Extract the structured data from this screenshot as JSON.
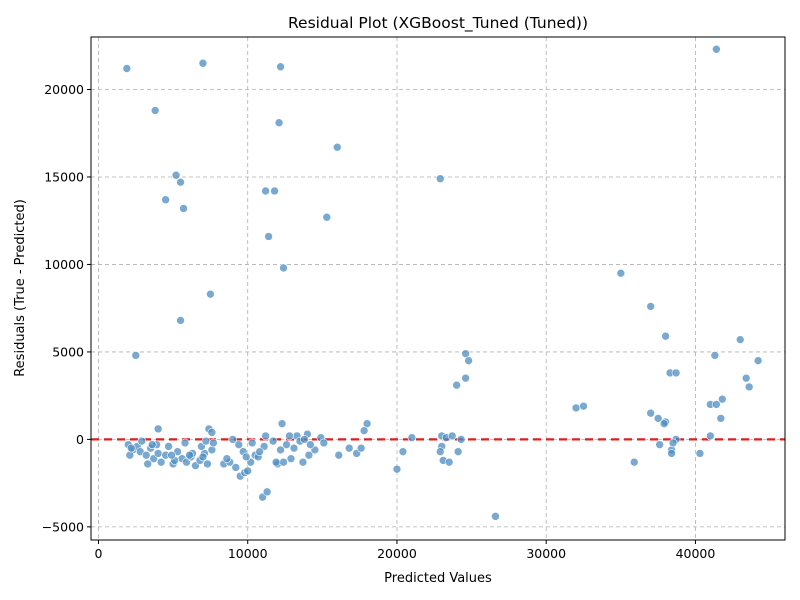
{
  "chart_data": {
    "type": "scatter",
    "title": "Residual Plot (XGBoost_Tuned (Tuned))",
    "xlabel": "Predicted Values",
    "ylabel": "Residuals (True - Predicted)",
    "xlim": [
      -500,
      46000
    ],
    "ylim": [
      -5750,
      23000
    ],
    "xticks": [
      0,
      10000,
      20000,
      30000,
      40000
    ],
    "yticks": [
      -5000,
      0,
      5000,
      10000,
      15000,
      20000
    ],
    "grid": true,
    "reference_line": {
      "y": 0,
      "style": "dashed",
      "color": "#dd1f1f"
    },
    "colors": {
      "point": "#4c8cc0",
      "point_edge": "#ffffff"
    },
    "points": [
      [
        1900,
        21200
      ],
      [
        3800,
        18800
      ],
      [
        7000,
        21500
      ],
      [
        12200,
        21300
      ],
      [
        12100,
        18100
      ],
      [
        41400,
        22300
      ],
      [
        5200,
        15100
      ],
      [
        5500,
        14700
      ],
      [
        4500,
        13700
      ],
      [
        5700,
        13200
      ],
      [
        11200,
        14200
      ],
      [
        11800,
        14200
      ],
      [
        16000,
        16700
      ],
      [
        22900,
        14900
      ],
      [
        15300,
        12700
      ],
      [
        11400,
        11600
      ],
      [
        12400,
        9800
      ],
      [
        7500,
        8300
      ],
      [
        5500,
        6800
      ],
      [
        2500,
        4800
      ],
      [
        35000,
        9500
      ],
      [
        37000,
        7600
      ],
      [
        38000,
        5900
      ],
      [
        43000,
        5700
      ],
      [
        41300,
        4800
      ],
      [
        44200,
        4500
      ],
      [
        38300,
        3800
      ],
      [
        38700,
        3800
      ],
      [
        43400,
        3500
      ],
      [
        43600,
        3000
      ],
      [
        24600,
        4900
      ],
      [
        24800,
        4500
      ],
      [
        24600,
        3500
      ],
      [
        24000,
        3100
      ],
      [
        32000,
        1800
      ],
      [
        32500,
        1900
      ],
      [
        41800,
        2300
      ],
      [
        41000,
        2000
      ],
      [
        41400,
        2000
      ],
      [
        37000,
        1500
      ],
      [
        37500,
        1200
      ],
      [
        38000,
        1000
      ],
      [
        37900,
        900
      ],
      [
        41700,
        1200
      ],
      [
        12300,
        900
      ],
      [
        18000,
        900
      ],
      [
        17800,
        500
      ],
      [
        4000,
        600
      ],
      [
        7400,
        600
      ],
      [
        7600,
        400
      ],
      [
        11200,
        200
      ],
      [
        13300,
        200
      ],
      [
        14900,
        100
      ],
      [
        21000,
        100
      ],
      [
        23000,
        200
      ],
      [
        23300,
        100
      ],
      [
        23700,
        200
      ],
      [
        24300,
        0
      ],
      [
        38700,
        0
      ],
      [
        41000,
        200
      ],
      [
        2000,
        -300
      ],
      [
        2300,
        -600
      ],
      [
        2600,
        -400
      ],
      [
        2800,
        -700
      ],
      [
        3200,
        -900
      ],
      [
        3500,
        -500
      ],
      [
        3700,
        -1100
      ],
      [
        4000,
        -800
      ],
      [
        4200,
        -1300
      ],
      [
        4500,
        -900
      ],
      [
        5000,
        -1400
      ],
      [
        5300,
        -700
      ],
      [
        5600,
        -1100
      ],
      [
        5900,
        -1300
      ],
      [
        6200,
        -1000
      ],
      [
        6500,
        -1500
      ],
      [
        6800,
        -1200
      ],
      [
        7100,
        -800
      ],
      [
        7300,
        -1400
      ],
      [
        7600,
        -600
      ],
      [
        8400,
        -1400
      ],
      [
        8800,
        -1300
      ],
      [
        9200,
        -1600
      ],
      [
        9500,
        -2100
      ],
      [
        9800,
        -1900
      ],
      [
        10000,
        -1800
      ],
      [
        10200,
        -1300
      ],
      [
        10500,
        -900
      ],
      [
        11000,
        -3300
      ],
      [
        11300,
        -3000
      ],
      [
        12000,
        -1400
      ],
      [
        12400,
        -1300
      ],
      [
        12900,
        -1100
      ],
      [
        13700,
        -1300
      ],
      [
        14100,
        -900
      ],
      [
        14500,
        -600
      ],
      [
        16100,
        -900
      ],
      [
        16800,
        -500
      ],
      [
        17300,
        -800
      ],
      [
        17600,
        -500
      ],
      [
        20000,
        -1700
      ],
      [
        20400,
        -700
      ],
      [
        23000,
        -400
      ],
      [
        23100,
        -1200
      ],
      [
        23500,
        -1300
      ],
      [
        24100,
        -700
      ],
      [
        26600,
        -4400
      ],
      [
        35900,
        -1300
      ],
      [
        37600,
        -300
      ],
      [
        38400,
        -600
      ],
      [
        38400,
        -800
      ],
      [
        40300,
        -800
      ],
      [
        2100,
        -900
      ],
      [
        2900,
        -100
      ],
      [
        3300,
        -1400
      ],
      [
        3900,
        -300
      ],
      [
        4700,
        -400
      ],
      [
        5100,
        -1200
      ],
      [
        5800,
        -200
      ],
      [
        6300,
        -800
      ],
      [
        6900,
        -400
      ],
      [
        7200,
        -100
      ],
      [
        7700,
        -200
      ],
      [
        9000,
        0
      ],
      [
        9400,
        -300
      ],
      [
        9700,
        -700
      ],
      [
        10300,
        -200
      ],
      [
        10700,
        -1000
      ],
      [
        11100,
        -400
      ],
      [
        11700,
        -100
      ],
      [
        12200,
        -600
      ],
      [
        12600,
        -300
      ],
      [
        13100,
        -500
      ],
      [
        13500,
        -100
      ],
      [
        14000,
        300
      ],
      [
        14200,
        -300
      ],
      [
        2200,
        -500
      ],
      [
        3600,
        -300
      ],
      [
        4900,
        -900
      ],
      [
        6100,
        -900
      ],
      [
        7000,
        -1000
      ],
      [
        8600,
        -1100
      ],
      [
        9900,
        -1000
      ],
      [
        10800,
        -700
      ],
      [
        11900,
        -1300
      ],
      [
        12800,
        200
      ],
      [
        13800,
        0
      ],
      [
        15100,
        -200
      ],
      [
        22900,
        -700
      ],
      [
        38500,
        -200
      ]
    ]
  }
}
